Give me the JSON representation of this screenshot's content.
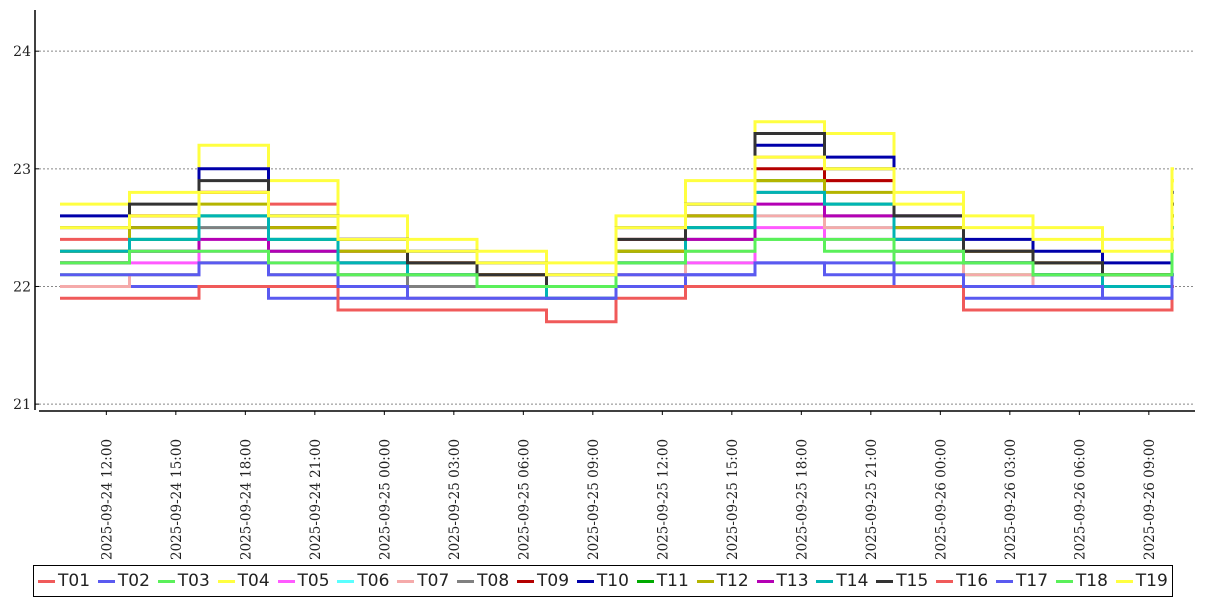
{
  "chart_data": {
    "type": "line",
    "title": "",
    "xlabel": "",
    "ylabel": "",
    "ylim": [
      20.95,
      24.35
    ],
    "yticks": [
      21,
      22,
      23,
      24
    ],
    "grid": "horizontal dotted",
    "legend_position": "bottom",
    "x_ticks": [
      "2025-09-24 12:00",
      "2025-09-24 15:00",
      "2025-09-24 18:00",
      "2025-09-24 21:00",
      "2025-09-25 00:00",
      "2025-09-25 03:00",
      "2025-09-25 06:00",
      "2025-09-25 09:00",
      "2025-09-25 12:00",
      "2025-09-25 15:00",
      "2025-09-25 18:00",
      "2025-09-25 21:00",
      "2025-09-26 00:00",
      "2025-09-26 03:00",
      "2025-09-26 06:00",
      "2025-09-26 09:00"
    ],
    "x_hours": [
      "2025-09-24 10:00",
      "2025-09-24 13:00",
      "2025-09-24 16:00",
      "2025-09-24 19:00",
      "2025-09-24 22:00",
      "2025-09-25 01:00",
      "2025-09-25 04:00",
      "2025-09-25 07:00",
      "2025-09-25 10:00",
      "2025-09-25 13:00",
      "2025-09-25 16:00",
      "2025-09-25 19:00",
      "2025-09-25 22:00",
      "2025-09-26 01:00",
      "2025-09-26 04:00",
      "2025-09-26 07:00",
      "2025-09-26 10:00"
    ],
    "series": [
      {
        "name": "T01",
        "color": "#f05a5a",
        "values": [
          22.4,
          22.6,
          22.8,
          22.7,
          22.4,
          22.2,
          22.1,
          22.0,
          22.3,
          22.6,
          23.1,
          22.9,
          22.6,
          22.2,
          22.1,
          22.0,
          22.9
        ]
      },
      {
        "name": "T02",
        "color": "#5a5af0",
        "values": [
          22.0,
          22.0,
          22.0,
          21.9,
          21.9,
          21.9,
          21.9,
          21.9,
          22.0,
          22.1,
          22.2,
          22.1,
          22.0,
          21.9,
          21.9,
          21.9,
          22.1
        ]
      },
      {
        "name": "T03",
        "color": "#5af05a",
        "values": [
          22.1,
          22.1,
          22.2,
          22.1,
          22.1,
          22.0,
          22.0,
          22.0,
          22.1,
          22.2,
          22.4,
          22.3,
          22.2,
          22.1,
          22.0,
          22.0,
          22.3
        ]
      },
      {
        "name": "T04",
        "color": "#ffff40",
        "values": [
          22.7,
          22.8,
          23.2,
          22.9,
          22.6,
          22.4,
          22.3,
          22.2,
          22.6,
          22.9,
          23.4,
          23.3,
          22.8,
          22.6,
          22.5,
          22.4,
          23.0
        ]
      },
      {
        "name": "T05",
        "color": "#ff5aff",
        "values": [
          22.2,
          22.2,
          22.3,
          22.2,
          22.1,
          22.0,
          22.0,
          21.9,
          22.1,
          22.2,
          22.5,
          22.4,
          22.3,
          22.2,
          22.1,
          22.0,
          22.4
        ]
      },
      {
        "name": "T06",
        "color": "#5affff",
        "values": [
          22.3,
          22.3,
          22.5,
          22.3,
          22.2,
          22.1,
          22.0,
          21.9,
          22.2,
          22.4,
          22.6,
          22.5,
          22.3,
          22.2,
          22.1,
          22.0,
          22.5
        ]
      },
      {
        "name": "T07",
        "color": "#f5aaaa",
        "values": [
          22.0,
          22.1,
          22.2,
          22.1,
          22.0,
          21.9,
          21.9,
          21.9,
          22.1,
          22.3,
          22.6,
          22.5,
          22.3,
          22.1,
          22.0,
          22.0,
          22.4
        ]
      },
      {
        "name": "T08",
        "color": "#808080",
        "values": [
          22.2,
          22.3,
          22.5,
          22.3,
          22.1,
          22.0,
          22.0,
          21.9,
          22.2,
          22.4,
          22.8,
          22.6,
          22.3,
          22.2,
          22.1,
          22.0,
          22.6
        ]
      },
      {
        "name": "T09",
        "color": "#b40000",
        "values": [
          22.3,
          22.6,
          22.8,
          22.5,
          22.3,
          22.2,
          22.1,
          22.0,
          22.4,
          22.6,
          23.0,
          22.9,
          22.5,
          22.3,
          22.2,
          22.1,
          22.7
        ]
      },
      {
        "name": "T10",
        "color": "#0000aa",
        "values": [
          22.6,
          22.5,
          23.0,
          22.6,
          22.4,
          22.3,
          22.2,
          22.1,
          22.5,
          22.7,
          23.2,
          23.1,
          22.6,
          22.4,
          22.3,
          22.2,
          22.8
        ]
      },
      {
        "name": "T11",
        "color": "#00aa00",
        "values": [
          22.2,
          22.4,
          22.6,
          22.4,
          22.2,
          22.1,
          22.0,
          22.0,
          22.3,
          22.5,
          22.9,
          22.7,
          22.4,
          22.2,
          22.1,
          22.0,
          22.6
        ]
      },
      {
        "name": "T12",
        "color": "#b4b400",
        "values": [
          22.3,
          22.5,
          22.7,
          22.5,
          22.3,
          22.2,
          22.1,
          22.0,
          22.3,
          22.6,
          22.9,
          22.8,
          22.5,
          22.3,
          22.2,
          22.1,
          22.6
        ]
      },
      {
        "name": "T13",
        "color": "#b400b4",
        "values": [
          22.2,
          22.3,
          22.4,
          22.3,
          22.2,
          22.1,
          22.0,
          22.0,
          22.2,
          22.4,
          22.7,
          22.6,
          22.4,
          22.2,
          22.1,
          22.0,
          22.5
        ]
      },
      {
        "name": "T14",
        "color": "#00b4b4",
        "values": [
          22.3,
          22.4,
          22.6,
          22.4,
          22.2,
          22.1,
          22.0,
          21.9,
          22.2,
          22.5,
          22.8,
          22.7,
          22.4,
          22.2,
          22.1,
          22.0,
          22.5
        ]
      },
      {
        "name": "T15",
        "color": "#333333",
        "values": [
          22.5,
          22.7,
          22.9,
          22.6,
          22.4,
          22.2,
          22.1,
          22.0,
          22.4,
          22.7,
          23.3,
          23.0,
          22.6,
          22.3,
          22.2,
          22.1,
          22.7
        ]
      },
      {
        "name": "T16",
        "color": "#f05a5a",
        "values": [
          21.9,
          21.9,
          22.0,
          22.0,
          21.8,
          21.8,
          21.8,
          21.7,
          21.9,
          22.0,
          22.0,
          22.0,
          22.0,
          21.8,
          21.8,
          21.8,
          22.0
        ]
      },
      {
        "name": "T17",
        "color": "#5a5af0",
        "values": [
          22.1,
          22.1,
          22.2,
          22.1,
          22.0,
          21.9,
          21.9,
          21.9,
          22.1,
          22.1,
          22.2,
          22.2,
          22.1,
          22.0,
          22.0,
          21.9,
          22.1
        ]
      },
      {
        "name": "T18",
        "color": "#5af05a",
        "values": [
          22.2,
          22.3,
          22.3,
          22.2,
          22.1,
          22.1,
          22.0,
          22.0,
          22.2,
          22.3,
          22.4,
          22.4,
          22.3,
          22.2,
          22.1,
          22.1,
          22.3
        ]
      },
      {
        "name": "T19",
        "color": "#ffff40",
        "values": [
          22.5,
          22.6,
          22.8,
          22.6,
          22.4,
          22.3,
          22.2,
          22.1,
          22.5,
          22.7,
          23.1,
          23.0,
          22.7,
          22.5,
          22.4,
          22.3,
          22.9
        ]
      }
    ]
  }
}
